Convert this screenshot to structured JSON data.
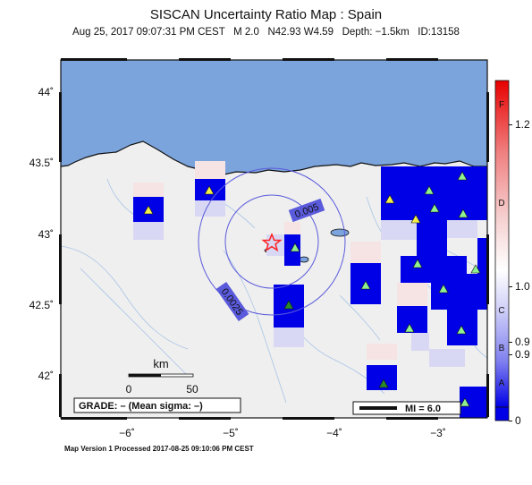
{
  "header": {
    "title": "SISCAN Uncertainty Ratio Map : Spain",
    "subtitle": "Aug 25, 2017 09:07:31 PM CEST   M 2.0   N42.93 W4.59   Depth: −1.5km   ID:13158"
  },
  "map": {
    "lat_ticks": [
      "44˚",
      "43.5˚",
      "43˚",
      "42.5˚",
      "42˚"
    ],
    "lon_ticks": [
      "−6˚",
      "−5˚",
      "−4˚",
      "−3˚"
    ],
    "contour_labels": [
      "0.005",
      "0.0025"
    ],
    "scale_bar": {
      "unit": "km",
      "min_label": "0",
      "max_label": "50"
    },
    "grade_box": "GRADE: – (Mean sigma: –)",
    "mi_label": "MI = 6.0",
    "colors": {
      "ocean": "#7ba3dc",
      "land": "#efefef",
      "high": "#0000e6",
      "star": "#ff2020"
    }
  },
  "colorbar": {
    "grade_labels": [
      "F",
      "D",
      "C",
      "B",
      "A"
    ],
    "value_labels": [
      "1.2",
      "1.0",
      "0.9",
      "0.9",
      "0"
    ]
  },
  "footer": {
    "text": "Map Version 1 Processed 2017-08-25 09:10:06 PM CEST"
  }
}
